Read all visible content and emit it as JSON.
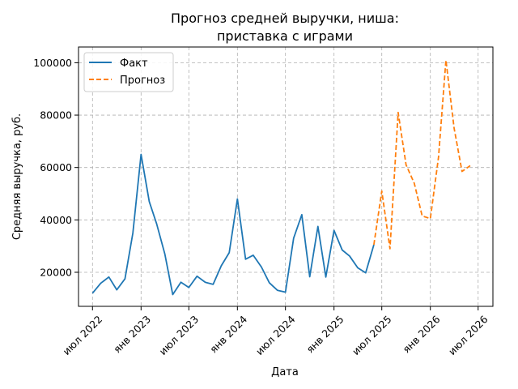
{
  "chart_data": {
    "type": "line",
    "title_lines": [
      "Прогноз средней выручки, ниша:",
      "приставка с играми"
    ],
    "xlabel": "Дата",
    "ylabel": "Средняя выручка, руб.",
    "grid": true,
    "legend_position": "top-left",
    "x_tick_labels": [
      {
        "date": "2022-07-01",
        "label": "июл 2022"
      },
      {
        "date": "2023-01-01",
        "label": "янв 2023"
      },
      {
        "date": "2023-07-01",
        "label": "июл 2023"
      },
      {
        "date": "2024-01-01",
        "label": "янв 2024"
      },
      {
        "date": "2024-07-01",
        "label": "июл 2024"
      },
      {
        "date": "2025-01-01",
        "label": "янв 2025"
      },
      {
        "date": "2025-07-01",
        "label": "июл 2025"
      },
      {
        "date": "2026-01-01",
        "label": "янв 2026"
      },
      {
        "date": "2026-07-01",
        "label": "июл 2026"
      }
    ],
    "y_ticks": [
      20000,
      40000,
      60000,
      80000,
      100000
    ],
    "xlim": [
      "2022-05-09",
      "2026-08-26"
    ],
    "ylim": [
      7000,
      106000
    ],
    "series": [
      {
        "name": "Факт",
        "color": "#1f77b4",
        "style": "solid",
        "x": [
          "2022-07-01",
          "2022-08-01",
          "2022-09-01",
          "2022-10-01",
          "2022-11-01",
          "2022-12-01",
          "2023-01-01",
          "2023-02-01",
          "2023-03-01",
          "2023-04-01",
          "2023-05-01",
          "2023-06-01",
          "2023-07-01",
          "2023-08-01",
          "2023-09-01",
          "2023-10-01",
          "2023-11-01",
          "2023-12-01",
          "2024-01-01",
          "2024-02-01",
          "2024-03-01",
          "2024-04-01",
          "2024-05-01",
          "2024-06-01",
          "2024-07-01",
          "2024-08-01",
          "2024-09-01",
          "2024-10-01",
          "2024-11-01",
          "2024-12-01",
          "2025-01-01",
          "2025-02-01",
          "2025-03-01",
          "2025-04-01",
          "2025-05-01",
          "2025-06-01"
        ],
        "y": [
          12000,
          15800,
          18200,
          13300,
          17500,
          35000,
          65000,
          47000,
          38500,
          27000,
          11500,
          16200,
          14200,
          18500,
          16200,
          15400,
          22500,
          27500,
          48000,
          25000,
          26500,
          22000,
          16000,
          13100,
          12400,
          33000,
          42000,
          18300,
          37500,
          18200,
          36000,
          28500,
          26200,
          21700,
          19800,
          30500
        ]
      },
      {
        "name": "Прогноз",
        "color": "#ff7f0e",
        "style": "dashed",
        "x": [
          "2025-06-01",
          "2025-07-01",
          "2025-08-01",
          "2025-09-01",
          "2025-10-01",
          "2025-11-01",
          "2025-12-01",
          "2026-01-01",
          "2026-02-01",
          "2026-03-01",
          "2026-04-01",
          "2026-05-01",
          "2026-06-01"
        ],
        "y": [
          30500,
          51000,
          29000,
          81000,
          61000,
          54000,
          41500,
          40500,
          64000,
          101000,
          75000,
          58500,
          60700
        ]
      }
    ]
  }
}
